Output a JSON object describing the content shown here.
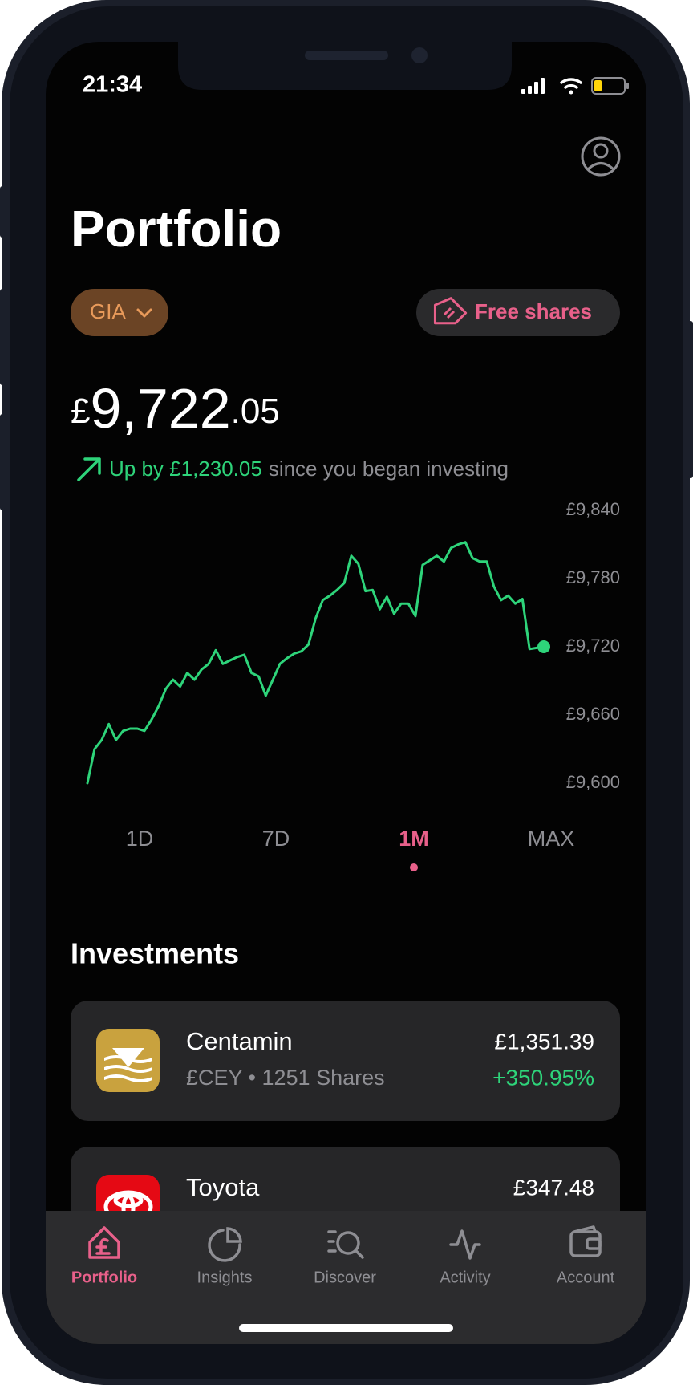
{
  "status_bar": {
    "time": "21:34"
  },
  "header": {
    "title": "Portfolio",
    "account": "GIA",
    "promo": "Free shares"
  },
  "balance": {
    "currency": "£",
    "whole": "9,722",
    "decimals": ".05"
  },
  "gain": {
    "label": "Up by £1,230.05",
    "suffix": "since you began investing"
  },
  "chart": {
    "type": "line",
    "color": "#2ed47a",
    "ylim": [
      9600,
      9840
    ],
    "yticks": [
      {
        "value": 9840,
        "label": "£9,840"
      },
      {
        "value": 9780,
        "label": "£9,780"
      },
      {
        "value": 9720,
        "label": "£9,720"
      },
      {
        "value": 9660,
        "label": "£9,660"
      },
      {
        "value": 9600,
        "label": "£9,600"
      }
    ],
    "values": [
      9600,
      9630,
      9638,
      9652,
      9638,
      9646,
      9648,
      9648,
      9646,
      9656,
      9668,
      9683,
      9691,
      9685,
      9697,
      9691,
      9700,
      9705,
      9717,
      9705,
      9708,
      9711,
      9713,
      9697,
      9694,
      9677,
      9691,
      9705,
      9710,
      9714,
      9716,
      9722,
      9745,
      9761,
      9765,
      9770,
      9776,
      9800,
      9793,
      9769,
      9770,
      9753,
      9764,
      9749,
      9758,
      9758,
      9747,
      9792,
      9796,
      9800,
      9795,
      9807,
      9810,
      9812,
      9798,
      9795,
      9795,
      9773,
      9761,
      9765,
      9758,
      9762,
      9718,
      9719,
      9720
    ]
  },
  "ranges": {
    "options": [
      "1D",
      "7D",
      "1M",
      "MAX"
    ],
    "selected": 2
  },
  "investments": {
    "title": "Investments",
    "items": [
      {
        "name": "Centamin",
        "meta": "£CEY • 1251 Shares",
        "value": "£1,351.39",
        "change": "+350.95%"
      },
      {
        "name": "Toyota",
        "value": "£347.48"
      }
    ]
  },
  "tab_bar": {
    "tabs": [
      "Portfolio",
      "Insights",
      "Discover",
      "Activity",
      "Account"
    ],
    "active": 0
  }
}
